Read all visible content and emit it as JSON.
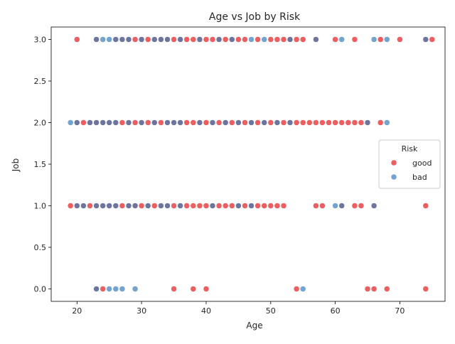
{
  "chart_data": {
    "type": "scatter",
    "title": "Age vs Job by Risk",
    "xlabel": "Age",
    "ylabel": "Job",
    "xlim": [
      16,
      77
    ],
    "ylim": [
      -0.15,
      3.15
    ],
    "xticks": [
      20,
      30,
      40,
      50,
      60,
      70
    ],
    "yticks": [
      0.0,
      0.5,
      1.0,
      1.5,
      2.0,
      2.5,
      3.0
    ],
    "ytick_labels": [
      "0.0",
      "0.5",
      "1.0",
      "1.5",
      "2.0",
      "2.5",
      "3.0"
    ],
    "grid": false,
    "legend": {
      "title": "Risk",
      "placement": "center-right"
    },
    "series": [
      {
        "name": "good",
        "color": "#e41a1c",
        "points": [
          [
            23,
            0
          ],
          [
            24,
            0
          ],
          [
            35,
            0
          ],
          [
            38,
            0
          ],
          [
            40,
            0
          ],
          [
            54,
            0
          ],
          [
            65,
            0
          ],
          [
            66,
            0
          ],
          [
            68,
            0
          ],
          [
            74,
            0
          ],
          [
            19,
            1
          ],
          [
            20,
            1
          ],
          [
            21,
            1
          ],
          [
            22,
            1
          ],
          [
            23,
            1
          ],
          [
            24,
            1
          ],
          [
            25,
            1
          ],
          [
            26,
            1
          ],
          [
            27,
            1
          ],
          [
            28,
            1
          ],
          [
            29,
            1
          ],
          [
            30,
            1
          ],
          [
            31,
            1
          ],
          [
            32,
            1
          ],
          [
            33,
            1
          ],
          [
            34,
            1
          ],
          [
            35,
            1
          ],
          [
            36,
            1
          ],
          [
            37,
            1
          ],
          [
            38,
            1
          ],
          [
            39,
            1
          ],
          [
            40,
            1
          ],
          [
            41,
            1
          ],
          [
            42,
            1
          ],
          [
            43,
            1
          ],
          [
            44,
            1
          ],
          [
            45,
            1
          ],
          [
            46,
            1
          ],
          [
            47,
            1
          ],
          [
            48,
            1
          ],
          [
            49,
            1
          ],
          [
            50,
            1
          ],
          [
            51,
            1
          ],
          [
            52,
            1
          ],
          [
            57,
            1
          ],
          [
            58,
            1
          ],
          [
            61,
            1
          ],
          [
            63,
            1
          ],
          [
            64,
            1
          ],
          [
            66,
            1
          ],
          [
            74,
            1
          ],
          [
            20,
            2
          ],
          [
            21,
            2
          ],
          [
            22,
            2
          ],
          [
            23,
            2
          ],
          [
            24,
            2
          ],
          [
            25,
            2
          ],
          [
            26,
            2
          ],
          [
            27,
            2
          ],
          [
            28,
            2
          ],
          [
            29,
            2
          ],
          [
            30,
            2
          ],
          [
            31,
            2
          ],
          [
            32,
            2
          ],
          [
            33,
            2
          ],
          [
            34,
            2
          ],
          [
            35,
            2
          ],
          [
            36,
            2
          ],
          [
            37,
            2
          ],
          [
            38,
            2
          ],
          [
            39,
            2
          ],
          [
            40,
            2
          ],
          [
            41,
            2
          ],
          [
            42,
            2
          ],
          [
            43,
            2
          ],
          [
            44,
            2
          ],
          [
            45,
            2
          ],
          [
            46,
            2
          ],
          [
            47,
            2
          ],
          [
            48,
            2
          ],
          [
            49,
            2
          ],
          [
            50,
            2
          ],
          [
            51,
            2
          ],
          [
            52,
            2
          ],
          [
            53,
            2
          ],
          [
            54,
            2
          ],
          [
            55,
            2
          ],
          [
            56,
            2
          ],
          [
            57,
            2
          ],
          [
            58,
            2
          ],
          [
            59,
            2
          ],
          [
            60,
            2
          ],
          [
            61,
            2
          ],
          [
            62,
            2
          ],
          [
            63,
            2
          ],
          [
            64,
            2
          ],
          [
            65,
            2
          ],
          [
            67,
            2
          ],
          [
            20,
            3
          ],
          [
            23,
            3
          ],
          [
            26,
            3
          ],
          [
            27,
            3
          ],
          [
            28,
            3
          ],
          [
            29,
            3
          ],
          [
            30,
            3
          ],
          [
            31,
            3
          ],
          [
            32,
            3
          ],
          [
            33,
            3
          ],
          [
            34,
            3
          ],
          [
            35,
            3
          ],
          [
            36,
            3
          ],
          [
            37,
            3
          ],
          [
            38,
            3
          ],
          [
            39,
            3
          ],
          [
            40,
            3
          ],
          [
            41,
            3
          ],
          [
            42,
            3
          ],
          [
            43,
            3
          ],
          [
            44,
            3
          ],
          [
            45,
            3
          ],
          [
            46,
            3
          ],
          [
            48,
            3
          ],
          [
            50,
            3
          ],
          [
            51,
            3
          ],
          [
            52,
            3
          ],
          [
            53,
            3
          ],
          [
            54,
            3
          ],
          [
            55,
            3
          ],
          [
            57,
            3
          ],
          [
            60,
            3
          ],
          [
            63,
            3
          ],
          [
            67,
            3
          ],
          [
            70,
            3
          ],
          [
            74,
            3
          ],
          [
            75,
            3
          ]
        ]
      },
      {
        "name": "bad",
        "color": "#377eb8",
        "points": [
          [
            23,
            0
          ],
          [
            25,
            0
          ],
          [
            26,
            0
          ],
          [
            27,
            0
          ],
          [
            29,
            0
          ],
          [
            55,
            0
          ],
          [
            20,
            1
          ],
          [
            21,
            1
          ],
          [
            23,
            1
          ],
          [
            24,
            1
          ],
          [
            25,
            1
          ],
          [
            26,
            1
          ],
          [
            28,
            1
          ],
          [
            29,
            1
          ],
          [
            31,
            1
          ],
          [
            33,
            1
          ],
          [
            34,
            1
          ],
          [
            36,
            1
          ],
          [
            41,
            1
          ],
          [
            45,
            1
          ],
          [
            47,
            1
          ],
          [
            60,
            1
          ],
          [
            61,
            1
          ],
          [
            66,
            1
          ],
          [
            19,
            2
          ],
          [
            20,
            2
          ],
          [
            22,
            2
          ],
          [
            23,
            2
          ],
          [
            24,
            2
          ],
          [
            25,
            2
          ],
          [
            26,
            2
          ],
          [
            28,
            2
          ],
          [
            30,
            2
          ],
          [
            32,
            2
          ],
          [
            34,
            2
          ],
          [
            35,
            2
          ],
          [
            36,
            2
          ],
          [
            39,
            2
          ],
          [
            41,
            2
          ],
          [
            43,
            2
          ],
          [
            45,
            2
          ],
          [
            47,
            2
          ],
          [
            49,
            2
          ],
          [
            51,
            2
          ],
          [
            53,
            2
          ],
          [
            65,
            2
          ],
          [
            68,
            2
          ],
          [
            23,
            3
          ],
          [
            24,
            3
          ],
          [
            25,
            3
          ],
          [
            26,
            3
          ],
          [
            27,
            3
          ],
          [
            28,
            3
          ],
          [
            30,
            3
          ],
          [
            32,
            3
          ],
          [
            33,
            3
          ],
          [
            34,
            3
          ],
          [
            36,
            3
          ],
          [
            39,
            3
          ],
          [
            42,
            3
          ],
          [
            44,
            3
          ],
          [
            47,
            3
          ],
          [
            49,
            3
          ],
          [
            53,
            3
          ],
          [
            57,
            3
          ],
          [
            61,
            3
          ],
          [
            66,
            3
          ],
          [
            68,
            3
          ],
          [
            74,
            3
          ]
        ]
      }
    ]
  }
}
